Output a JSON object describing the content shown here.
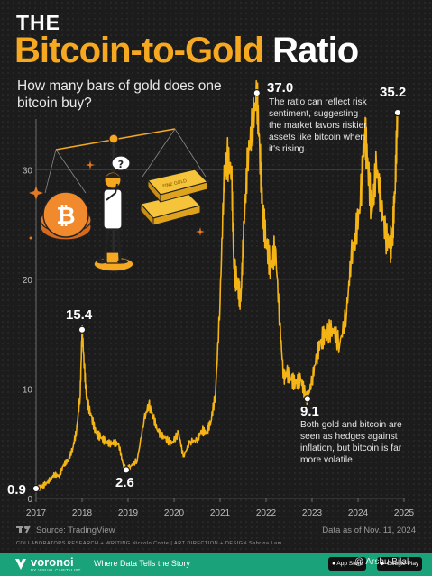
{
  "header": {
    "the": "THE",
    "title_part1": "Bitcoin-to-Gold",
    "title_part2": " Ratio",
    "subtitle": "How many bars of gold does one bitcoin buy?"
  },
  "annotations": {
    "peak_label": "37.0",
    "peak_text": "The ratio can reflect risk sentiment, suggesting the market favors riskier assets like bitcoin when it's rising.",
    "end_label": "35.2",
    "high2018_label": "15.4",
    "low2019_label": "2.6",
    "start_label": "0.9",
    "low2022_label": "9.1",
    "low2022_text": "Both gold and bitcoin are seen as hedges against inflation, but bitcoin is far more volatile."
  },
  "illustration": {
    "bubble": "?",
    "gold_bar_text": "FINE GOLD"
  },
  "footer": {
    "source": "Source: TradingView",
    "as_of": "Data as of Nov. 11, 2024",
    "collaborators": "COLLABORATORS   RESEARCH + WRITING Niccolo Conte  |  ART DIRECTION + DESIGN Sabrina Lam",
    "logo": "voronoi",
    "logo_sub": "BY VISUAL CAPITALIST",
    "tagline": "Where Data Tells the Story",
    "app_store": "App Store",
    "google_play": "Google Play",
    "watermark": "@ Arshu Bilal"
  },
  "colors": {
    "accent": "#f5a820",
    "line": "#f5b416",
    "background": "#1c1c1c",
    "footer": "#1aa37a"
  },
  "chart_data": {
    "type": "line",
    "title": "",
    "xlabel": "",
    "ylabel": "",
    "x_ticks": [
      "2017",
      "2018",
      "2019",
      "2020",
      "2021",
      "2022",
      "2023",
      "2024",
      "2025"
    ],
    "y_ticks": [
      "0",
      "10",
      "20",
      "30"
    ],
    "xlim": [
      2017,
      2025
    ],
    "ylim": [
      0,
      38
    ],
    "grid": true,
    "series": [
      {
        "x": [
          2017.0,
          2017.1,
          2017.2,
          2017.3,
          2017.4,
          2017.5,
          2017.6,
          2017.7,
          2017.8,
          2017.88,
          2017.96,
          2018.0,
          2018.05,
          2018.1,
          2018.2,
          2018.3,
          2018.4,
          2018.5,
          2018.6,
          2018.7,
          2018.8,
          2018.9,
          2018.96,
          2019.05,
          2019.2,
          2019.35,
          2019.45,
          2019.55,
          2019.65,
          2019.8,
          2019.95,
          2020.1,
          2020.2,
          2020.35,
          2020.5,
          2020.6,
          2020.7,
          2020.8,
          2020.9,
          2021.0,
          2021.08,
          2021.15,
          2021.25,
          2021.3,
          2021.38,
          2021.45,
          2021.52,
          2021.6,
          2021.7,
          2021.8,
          2021.86,
          2021.93,
          2022.0,
          2022.1,
          2022.2,
          2022.3,
          2022.38,
          2022.45,
          2022.55,
          2022.65,
          2022.75,
          2022.85,
          2022.9,
          2023.0,
          2023.1,
          2023.2,
          2023.3,
          2023.45,
          2023.6,
          2023.75,
          2023.85,
          2023.95,
          2024.05,
          2024.15,
          2024.2,
          2024.3,
          2024.4,
          2024.5,
          2024.6,
          2024.7,
          2024.75,
          2024.8,
          2024.86
        ],
        "y": [
          0.9,
          1.0,
          1.3,
          1.7,
          2.2,
          2.0,
          3.1,
          3.5,
          4.6,
          6.2,
          9.5,
          15.4,
          12.0,
          9.0,
          7.5,
          6.0,
          5.6,
          5.2,
          5.0,
          5.1,
          4.9,
          3.0,
          2.6,
          2.9,
          3.5,
          7.2,
          8.6,
          7.4,
          6.1,
          5.5,
          5.0,
          6.0,
          3.8,
          5.2,
          5.3,
          6.2,
          6.0,
          7.0,
          9.5,
          18.0,
          28.5,
          31.0,
          30.0,
          21.0,
          19.5,
          18.0,
          25.0,
          31.0,
          34.0,
          37.0,
          32.0,
          26.0,
          23.5,
          21.0,
          23.0,
          16.0,
          11.0,
          11.5,
          10.8,
          10.5,
          10.9,
          9.5,
          9.1,
          10.8,
          13.0,
          14.5,
          15.0,
          15.5,
          14.0,
          17.0,
          22.0,
          24.0,
          27.0,
          33.5,
          31.0,
          26.0,
          30.5,
          27.0,
          24.0,
          23.0,
          24.0,
          28.0,
          35.2
        ]
      }
    ]
  }
}
